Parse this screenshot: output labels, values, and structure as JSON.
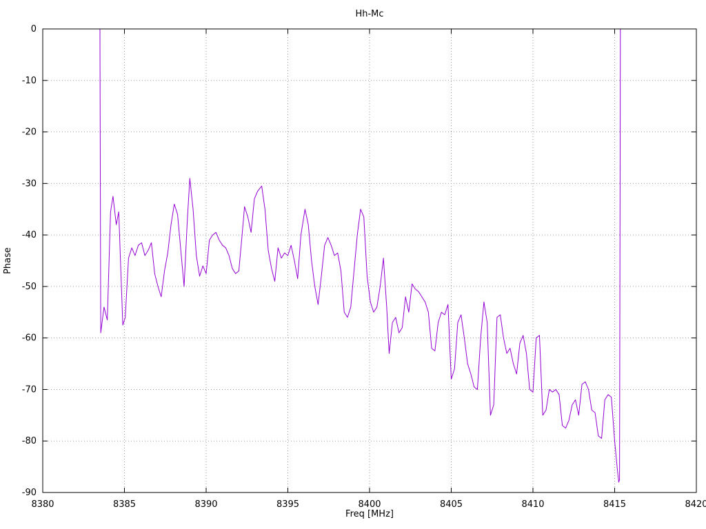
{
  "chart_data": {
    "type": "line",
    "title": "Hh-Mc",
    "xlabel": "Freq [MHz]",
    "ylabel": "Phase",
    "xlim": [
      8380,
      8420
    ],
    "ylim": [
      -90,
      0
    ],
    "x_ticks": [
      8380,
      8385,
      8390,
      8395,
      8400,
      8405,
      8410,
      8415,
      8420
    ],
    "y_ticks": [
      0,
      -10,
      -20,
      -30,
      -40,
      -50,
      -60,
      -70,
      -80,
      -90
    ],
    "grid": true,
    "legend": "none",
    "line_color": "#9400d3",
    "series": [
      {
        "name": "Hh-Mc phase",
        "points": [
          [
            8383.5,
            0
          ],
          [
            8383.55,
            -59.0
          ],
          [
            8383.75,
            -54.0
          ],
          [
            8383.95,
            -56.5
          ],
          [
            8384.15,
            -35.5
          ],
          [
            8384.3,
            -32.5
          ],
          [
            8384.5,
            -38.0
          ],
          [
            8384.65,
            -35.5
          ],
          [
            8384.9,
            -57.5
          ],
          [
            8385.05,
            -56.0
          ],
          [
            8385.25,
            -44.5
          ],
          [
            8385.45,
            -42.5
          ],
          [
            8385.65,
            -44.0
          ],
          [
            8385.85,
            -42.0
          ],
          [
            8386.05,
            -41.5
          ],
          [
            8386.25,
            -44.0
          ],
          [
            8386.45,
            -43.0
          ],
          [
            8386.65,
            -41.5
          ],
          [
            8386.85,
            -47.5
          ],
          [
            8387.05,
            -50.0
          ],
          [
            8387.25,
            -52.0
          ],
          [
            8387.45,
            -47.0
          ],
          [
            8387.65,
            -43.5
          ],
          [
            8387.85,
            -38.0
          ],
          [
            8388.05,
            -34.0
          ],
          [
            8388.25,
            -36.0
          ],
          [
            8388.45,
            -43.0
          ],
          [
            8388.65,
            -50.0
          ],
          [
            8388.85,
            -37.0
          ],
          [
            8389.0,
            -29.0
          ],
          [
            8389.2,
            -35.0
          ],
          [
            8389.4,
            -44.0
          ],
          [
            8389.6,
            -48.0
          ],
          [
            8389.8,
            -46.0
          ],
          [
            8390.0,
            -47.5
          ],
          [
            8390.2,
            -41.0
          ],
          [
            8390.4,
            -40.0
          ],
          [
            8390.6,
            -39.5
          ],
          [
            8390.8,
            -41.0
          ],
          [
            8391.0,
            -42.0
          ],
          [
            8391.2,
            -42.5
          ],
          [
            8391.4,
            -44.0
          ],
          [
            8391.6,
            -46.5
          ],
          [
            8391.8,
            -47.5
          ],
          [
            8392.0,
            -47.0
          ],
          [
            8392.2,
            -40.0
          ],
          [
            8392.35,
            -34.5
          ],
          [
            8392.55,
            -36.5
          ],
          [
            8392.75,
            -39.5
          ],
          [
            8392.95,
            -33.0
          ],
          [
            8393.15,
            -31.5
          ],
          [
            8393.4,
            -30.5
          ],
          [
            8393.6,
            -35.0
          ],
          [
            8393.8,
            -43.0
          ],
          [
            8394.0,
            -46.5
          ],
          [
            8394.2,
            -49.0
          ],
          [
            8394.4,
            -42.5
          ],
          [
            8394.6,
            -44.5
          ],
          [
            8394.8,
            -43.5
          ],
          [
            8395.0,
            -44.0
          ],
          [
            8395.2,
            -42.0
          ],
          [
            8395.4,
            -45.0
          ],
          [
            8395.6,
            -48.5
          ],
          [
            8395.8,
            -40.0
          ],
          [
            8396.05,
            -35.0
          ],
          [
            8396.25,
            -38.0
          ],
          [
            8396.45,
            -45.0
          ],
          [
            8396.65,
            -50.0
          ],
          [
            8396.85,
            -53.5
          ],
          [
            8397.05,
            -48.0
          ],
          [
            8397.25,
            -42.0
          ],
          [
            8397.45,
            -40.5
          ],
          [
            8397.65,
            -42.0
          ],
          [
            8397.85,
            -44.0
          ],
          [
            8398.05,
            -43.5
          ],
          [
            8398.25,
            -47.0
          ],
          [
            8398.45,
            -55.0
          ],
          [
            8398.65,
            -56.0
          ],
          [
            8398.85,
            -54.0
          ],
          [
            8399.05,
            -47.0
          ],
          [
            8399.25,
            -40.0
          ],
          [
            8399.45,
            -35.0
          ],
          [
            8399.65,
            -36.5
          ],
          [
            8399.85,
            -48.0
          ],
          [
            8400.05,
            -53.0
          ],
          [
            8400.25,
            -55.0
          ],
          [
            8400.45,
            -54.0
          ],
          [
            8400.65,
            -50.0
          ],
          [
            8400.85,
            -44.5
          ],
          [
            8401.05,
            -54.0
          ],
          [
            8401.2,
            -63.0
          ],
          [
            8401.4,
            -57.0
          ],
          [
            8401.6,
            -56.0
          ],
          [
            8401.8,
            -59.0
          ],
          [
            8402.0,
            -58.0
          ],
          [
            8402.2,
            -52.0
          ],
          [
            8402.4,
            -55.0
          ],
          [
            8402.6,
            -49.5
          ],
          [
            8402.8,
            -50.5
          ],
          [
            8403.0,
            -51.0
          ],
          [
            8403.2,
            -52.0
          ],
          [
            8403.4,
            -53.0
          ],
          [
            8403.6,
            -55.0
          ],
          [
            8403.8,
            -62.0
          ],
          [
            8404.0,
            -62.5
          ],
          [
            8404.2,
            -57.0
          ],
          [
            8404.4,
            -55.0
          ],
          [
            8404.6,
            -55.5
          ],
          [
            8404.8,
            -53.5
          ],
          [
            8405.0,
            -68.0
          ],
          [
            8405.2,
            -66.0
          ],
          [
            8405.4,
            -57.0
          ],
          [
            8405.6,
            -55.5
          ],
          [
            8405.8,
            -60.0
          ],
          [
            8406.0,
            -65.0
          ],
          [
            8406.2,
            -67.0
          ],
          [
            8406.4,
            -69.5
          ],
          [
            8406.6,
            -70.0
          ],
          [
            8406.8,
            -60.0
          ],
          [
            8407.0,
            -53.0
          ],
          [
            8407.2,
            -57.0
          ],
          [
            8407.4,
            -75.0
          ],
          [
            8407.6,
            -73.0
          ],
          [
            8407.8,
            -56.0
          ],
          [
            8408.0,
            -55.5
          ],
          [
            8408.2,
            -60.0
          ],
          [
            8408.4,
            -63.0
          ],
          [
            8408.6,
            -62.0
          ],
          [
            8408.8,
            -65.0
          ],
          [
            8409.0,
            -67.0
          ],
          [
            8409.2,
            -61.0
          ],
          [
            8409.4,
            -59.5
          ],
          [
            8409.6,
            -63.0
          ],
          [
            8409.8,
            -70.0
          ],
          [
            8410.0,
            -70.5
          ],
          [
            8410.2,
            -60.0
          ],
          [
            8410.4,
            -59.5
          ],
          [
            8410.6,
            -75.0
          ],
          [
            8410.8,
            -74.0
          ],
          [
            8411.0,
            -70.0
          ],
          [
            8411.2,
            -70.5
          ],
          [
            8411.4,
            -70.0
          ],
          [
            8411.6,
            -71.0
          ],
          [
            8411.8,
            -77.0
          ],
          [
            8412.0,
            -77.5
          ],
          [
            8412.2,
            -76.0
          ],
          [
            8412.4,
            -73.0
          ],
          [
            8412.6,
            -72.0
          ],
          [
            8412.8,
            -75.0
          ],
          [
            8413.0,
            -69.0
          ],
          [
            8413.2,
            -68.5
          ],
          [
            8413.4,
            -70.0
          ],
          [
            8413.6,
            -74.0
          ],
          [
            8413.8,
            -74.5
          ],
          [
            8414.0,
            -79.0
          ],
          [
            8414.2,
            -79.5
          ],
          [
            8414.4,
            -72.0
          ],
          [
            8414.6,
            -71.0
          ],
          [
            8414.8,
            -71.5
          ],
          [
            8415.0,
            -80.0
          ],
          [
            8415.15,
            -85.0
          ],
          [
            8415.25,
            -88.0
          ],
          [
            8415.3,
            -87.5
          ],
          [
            8415.35,
            0
          ]
        ]
      }
    ]
  }
}
